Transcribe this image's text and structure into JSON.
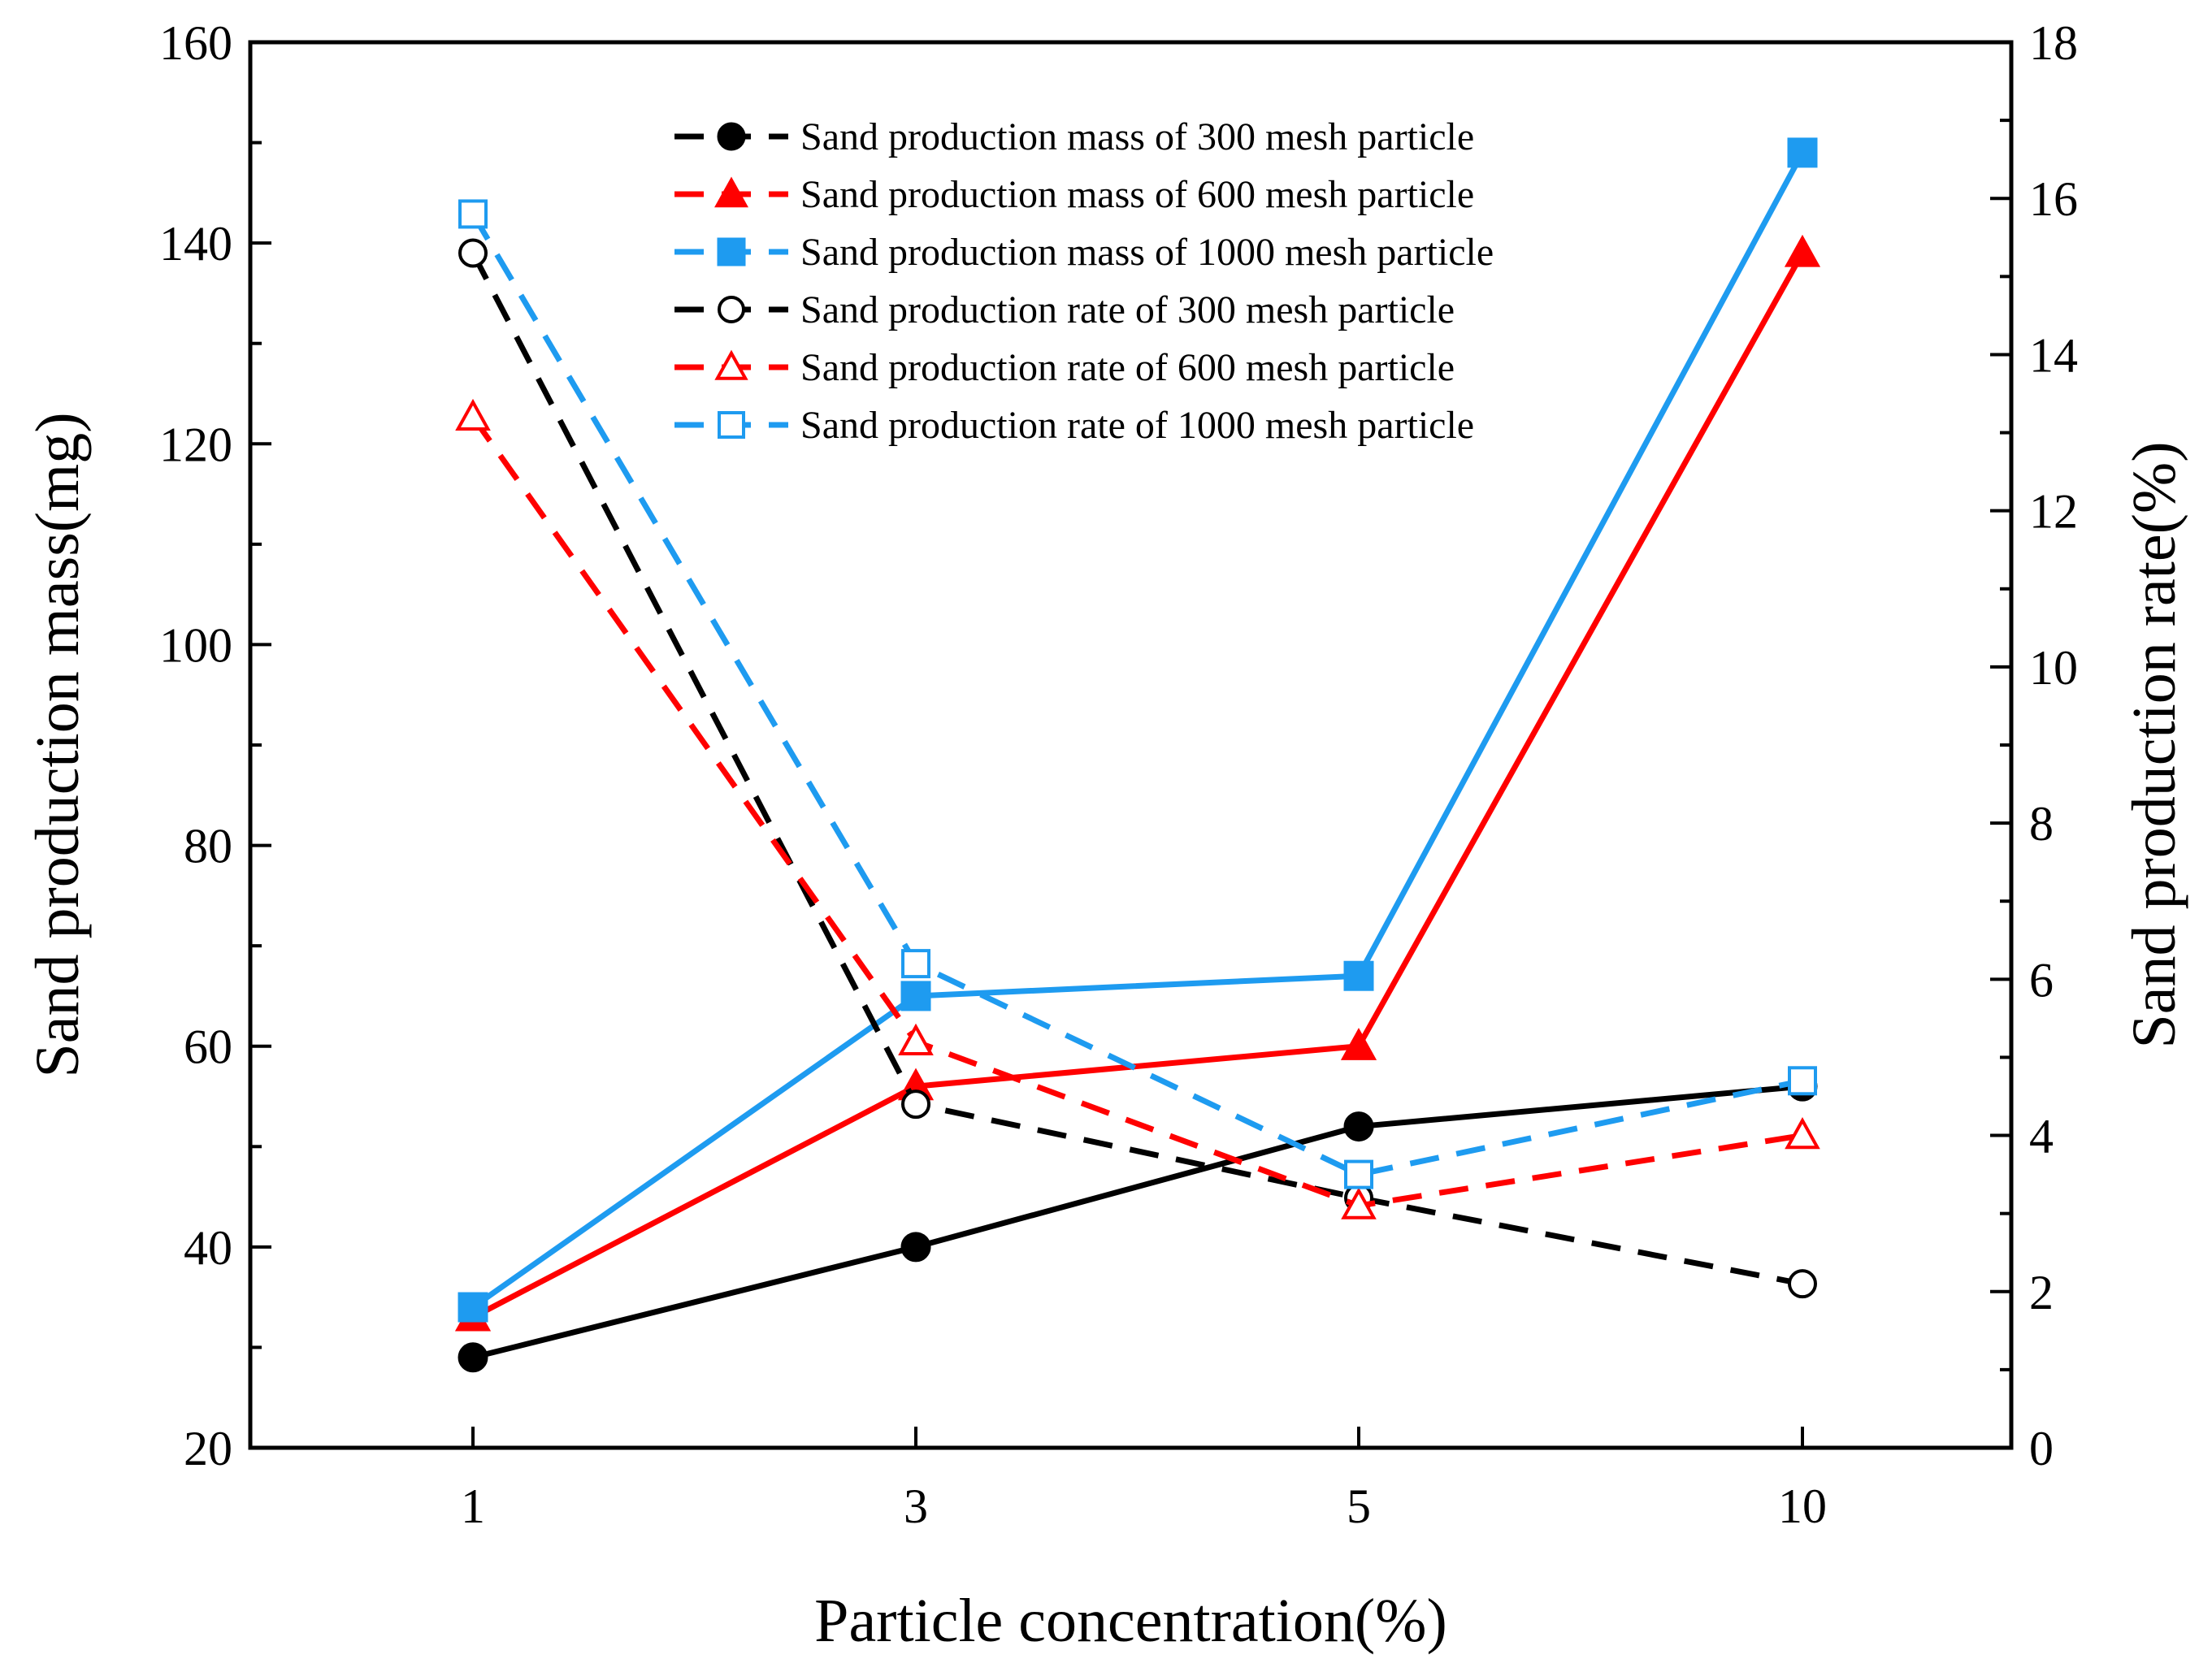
{
  "chart_data": {
    "type": "line",
    "categories": [
      "1",
      "3",
      "5",
      "10"
    ],
    "xlabel": "Particle concentration(%)",
    "ylabel": "Sand production mass(mg)",
    "y2label": "Sand production rate(%)",
    "ylim": [
      20,
      160
    ],
    "y2lim": [
      0,
      18
    ],
    "yticks": [
      "20",
      "40",
      "60",
      "80",
      "100",
      "120",
      "140",
      "160"
    ],
    "y2ticks": [
      "0",
      "2",
      "4",
      "6",
      "8",
      "10",
      "12",
      "14",
      "16",
      "18"
    ],
    "legend_position": "top-center",
    "colors": {
      "black": "#000000",
      "red": "#ff0000",
      "blue": "#1e9bf0"
    },
    "series": [
      {
        "name": "Sand production mass of 300 mesh particle",
        "axis": "left",
        "color": "black",
        "marker": "circle",
        "filled": true,
        "values": [
          29,
          40,
          52,
          56
        ]
      },
      {
        "name": "Sand production mass of 600 mesh particle",
        "axis": "left",
        "color": "red",
        "marker": "triangle",
        "filled": true,
        "values": [
          33,
          56,
          60,
          139
        ]
      },
      {
        "name": "Sand production mass of 1000 mesh particle",
        "axis": "left",
        "color": "blue",
        "marker": "square",
        "filled": true,
        "values": [
          34,
          65,
          67,
          149
        ]
      },
      {
        "name": "Sand production rate of 300 mesh particle",
        "axis": "right",
        "color": "black",
        "marker": "circle",
        "filled": false,
        "values": [
          15.3,
          4.4,
          3.2,
          2.1
        ]
      },
      {
        "name": "Sand production rate of 600 mesh particle",
        "axis": "right",
        "color": "red",
        "marker": "triangle",
        "filled": false,
        "values": [
          13.2,
          5.2,
          3.1,
          4.0
        ]
      },
      {
        "name": "Sand production rate of 1000 mesh particle",
        "axis": "right",
        "color": "blue",
        "marker": "square",
        "filled": false,
        "values": [
          15.8,
          6.2,
          3.5,
          4.7
        ]
      }
    ]
  }
}
